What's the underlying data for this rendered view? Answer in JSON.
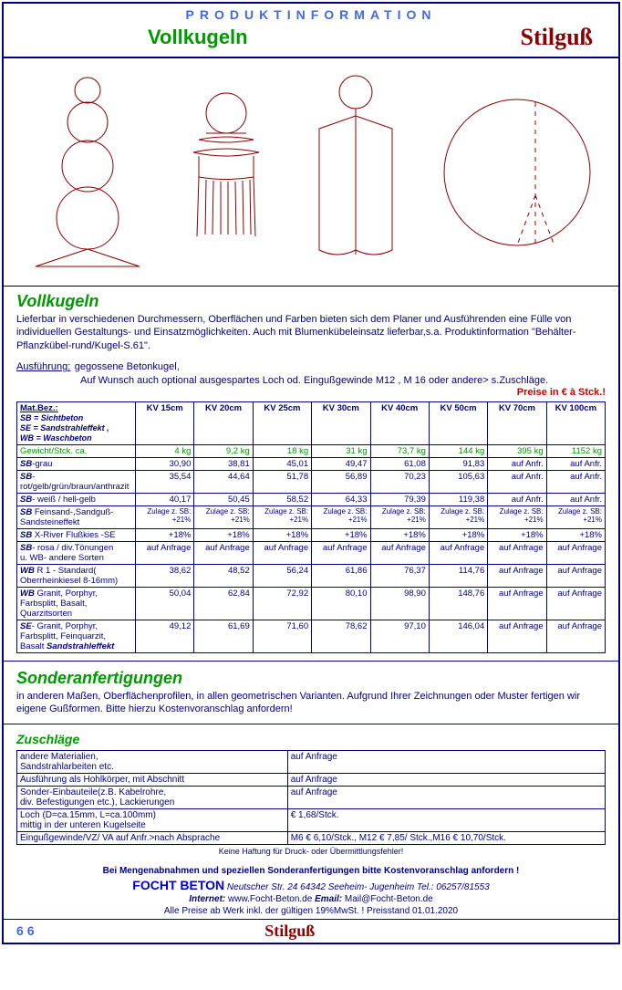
{
  "header": {
    "prodinfo": "PRODUKTINFORMATION",
    "title": "Vollkugeln",
    "brand": "Stilguß"
  },
  "intro": {
    "heading": "Vollkugeln",
    "text": "Lieferbar in verschiedenen Durchmessern, Oberflächen und Farben bieten sich dem Planer und Ausführenden eine Fülle von individuellen Gestaltungs- und Einsatzmöglichkeiten. Auch mit Blumenkübeleinsatz lieferbar,s.a. Produktinformation \"Behälter- Pflanzkübel-rund/Kugel-S.61\".",
    "ausf_label": "Ausführung:",
    "ausf_text": " gegossene Betonkugel,",
    "ausf_note": "Auf Wunsch auch optional ausgespartes Loch od. Eingußgewinde M12 , M 16 oder andere> s.Zuschläge.",
    "price_note": "Preise in € à Stck.!"
  },
  "table": {
    "head_label": "Mat.Bez.:",
    "head_sub": "SB = Sichtbeton\nSE = Sandstrahleffekt ,\nWB = Waschbeton",
    "cols": [
      "KV 15cm",
      "KV 20cm",
      "KV 25cm",
      "KV 30cm",
      "KV 40cm",
      "KV 50cm",
      "KV 70cm",
      "KV 100cm"
    ],
    "rows": [
      {
        "label": "Gewicht/Stck. ca.",
        "v": [
          "4 kg",
          "9,2 kg",
          "18 kg",
          "31 kg",
          "73,7 kg",
          "144 kg",
          "395 kg",
          "1152 kg"
        ],
        "green": true
      },
      {
        "label": "SB-grau",
        "bold": true,
        "v": [
          "30,90",
          "38,81",
          "45,01",
          "49,47",
          "61,08",
          "91,83",
          "auf Anfr.",
          "auf Anfr."
        ]
      },
      {
        "label": "SB-\nrot/gelb/grün/braun/anthrazit",
        "bold": true,
        "v": [
          "35,54",
          "44,64",
          "51,78",
          "56,89",
          "70,23",
          "105,63",
          "auf Anfr.",
          "auf Anfr."
        ]
      },
      {
        "label": "SB- weiß / hell-gelb",
        "bold": true,
        "v": [
          "40,17",
          "50,45",
          "58,52",
          "64,33",
          "79,39",
          "119,38",
          "auf Anfr.",
          "auf Anfr."
        ]
      },
      {
        "label": "SB Feinsand-,Sandguß-Sandsteineffekt",
        "bold": true,
        "v": [
          "Zulage z. SB:\n+21%",
          "Zulage z. SB:\n+21%",
          "Zulage z. SB:\n+21%",
          "Zulage z. SB:\n+21%",
          "Zulage z. SB:\n+21%",
          "Zulage z. SB:\n+21%",
          "Zulage z. SB:\n+21%",
          "Zulage z. SB:\n+21%"
        ]
      },
      {
        "label": "SB X-River Flußkies -SE",
        "bold": true,
        "v": [
          "+18%",
          "+18%",
          "+18%",
          "+18%",
          "+18%",
          "+18%",
          "+18%",
          "+18%"
        ]
      },
      {
        "label": "SB- rosa / div.Tönungen\nu. WB- andere Sorten",
        "bold": true,
        "v": [
          "auf Anfrage",
          "auf Anfrage",
          "auf Anfrage",
          "auf Anfrage",
          "auf Anfrage",
          "auf Anfrage",
          "auf Anfrage",
          "auf Anfrage"
        ]
      },
      {
        "label": "WB R 1 - Standard( Oberrheinkiesel 8-16mm)",
        "bold": true,
        "v": [
          "38,62",
          "48,52",
          "56,24",
          "61,86",
          "76,37",
          "114,76",
          "auf Anfrage",
          "auf Anfrage"
        ]
      },
      {
        "label": "WB Granit, Porphyr, Farbsplitt, Basalt, Quarzitsorten",
        "bold": true,
        "v": [
          "50,04",
          "62,84",
          "72,92",
          "80,10",
          "98,90",
          "148,76",
          "auf Anfrage",
          "auf Anfrage"
        ]
      },
      {
        "label": "SE- Granit, Porphyr, Farbsplitt, Feinquarzit, Basalt Sandstrahleffekt",
        "bold": true,
        "v": [
          "49,12",
          "61,69",
          "71,60",
          "78,62",
          "97,10",
          "146,04",
          "auf Anfrage",
          "auf Anfrage"
        ]
      }
    ]
  },
  "sonder": {
    "heading": "Sonderanfertigungen",
    "text": "in anderen Maßen, Oberflächenprofilen, in allen geometrischen Varianten. Aufgrund Ihrer Zeichnungen oder Muster fertigen wir eigene Gußformen. Bitte hierzu Kostenvoranschlag anfordern!"
  },
  "zuschlaege": {
    "heading": "Zuschläge",
    "rows": [
      {
        "l": "andere Materialien,\nSandstrahlarbeiten etc.",
        "r": "auf Anfrage"
      },
      {
        "l": "Ausführung als Hohlkörper, mit Abschnitt",
        "r": "auf Anfrage"
      },
      {
        "l": "Sonder-Einbauteile(z.B. Kabelrohre,\ndiv. Befestigungen etc.), Lackierungen",
        "r": "auf Anfrage"
      },
      {
        "l": "Loch (D=ca.15mm, L=ca.100mm)\nmittig in der unteren Kugelseite",
        "r": "€  1,68/Stck."
      },
      {
        "l": "Eingußgewinde/VZ/ VA auf Anfr.>nach Absprache",
        "r": "M6   € 6,10/Stck., M12  € 7,85/ Stck.,M16  € 10,70/Stck."
      }
    ],
    "disclaimer": "Keine Haftung für Druck- oder Übermittlungsfehler!"
  },
  "footer": {
    "line1": "Bei Mengenabnahmen und speziellen Sonderanfertigungen bitte Kostenvoranschlag anfordern !",
    "company": "FOCHT BETON",
    "addr": " Neutscher Str. 24   64342 Seeheim- Jugenheim   Tel.: 06257/81553",
    "web_label": "Internet:",
    "web": " www.Focht-Beton.de      ",
    "email_label": "Email:",
    "email": " Mail@Focht-Beton.de",
    "line4": "Alle Preise ab Werk inkl. der gültigen 19%MwSt. !   Preisstand 01.01.2020",
    "page": "66",
    "brand": "Stilguß"
  },
  "colors": {
    "stroke": "#8B0000",
    "navy": "#000080"
  }
}
